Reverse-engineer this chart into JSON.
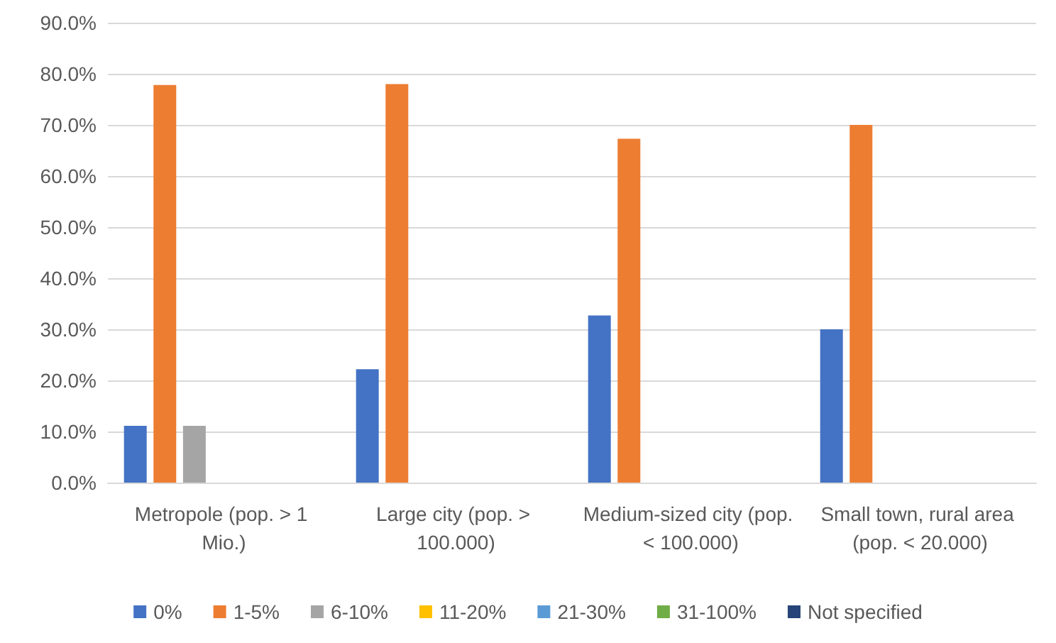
{
  "chart_data": {
    "type": "bar",
    "categories": [
      "Metropole (pop. > 1 Mio.)",
      "Large city (pop. > 100.000)",
      "Medium-sized city (pop. < 100.000)",
      "Small town, rural area (pop. < 20.000)"
    ],
    "series": [
      {
        "name": "0%",
        "color": "#4472c4",
        "values": [
          11.1,
          22.2,
          32.7,
          30.0
        ]
      },
      {
        "name": "1-5%",
        "color": "#ed7d31",
        "values": [
          77.8,
          78.0,
          67.3,
          70.0
        ]
      },
      {
        "name": "6-10%",
        "color": "#a5a5a5",
        "values": [
          11.1,
          0,
          0,
          0
        ]
      },
      {
        "name": "11-20%",
        "color": "#ffc000",
        "values": [
          0,
          0,
          0,
          0
        ]
      },
      {
        "name": "21-30%",
        "color": "#5b9bd5",
        "values": [
          0,
          0,
          0,
          0
        ]
      },
      {
        "name": "31-100%",
        "color": "#70ad47",
        "values": [
          0,
          0,
          0,
          0
        ]
      },
      {
        "name": "Not specified",
        "color": "#264478",
        "values": [
          0,
          0,
          0,
          0
        ]
      }
    ],
    "ylim": [
      0,
      90
    ],
    "yticks": [
      {
        "value": 0,
        "label": "0.0%"
      },
      {
        "value": 10,
        "label": "10.0%"
      },
      {
        "value": 20,
        "label": "20.0%"
      },
      {
        "value": 30,
        "label": "30.0%"
      },
      {
        "value": 40,
        "label": "40.0%"
      },
      {
        "value": 50,
        "label": "50.0%"
      },
      {
        "value": 60,
        "label": "60.0%"
      },
      {
        "value": 70,
        "label": "70.0%"
      },
      {
        "value": 80,
        "label": "80.0%"
      },
      {
        "value": 90,
        "label": "90.0%"
      }
    ],
    "grid": "y",
    "legend": "bottom"
  }
}
